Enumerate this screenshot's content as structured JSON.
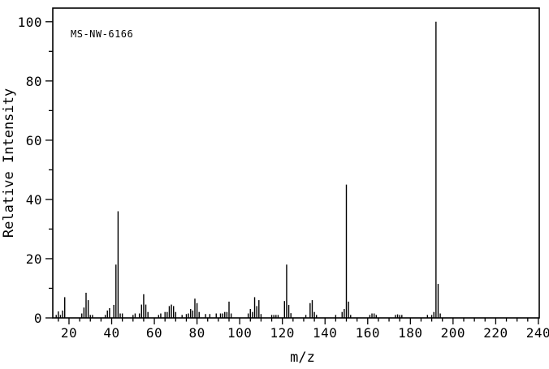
{
  "figure": {
    "annotation": "MS-NW-6166",
    "background_color": "#ffffff",
    "line_color": "#000000"
  },
  "chart_data": {
    "type": "bar",
    "subtype": "mass-spectrum",
    "title": "MS-NW-6166",
    "xlabel": "m/z",
    "ylabel": "Relative Intensity",
    "xlim": [
      12.4,
      240.4
    ],
    "ylim": [
      0,
      104.6
    ],
    "x_major_ticks": [
      20,
      40,
      60,
      80,
      100,
      120,
      140,
      160,
      180,
      200,
      220,
      240
    ],
    "x_minor_tick_step": 5,
    "y_major_ticks": [
      0,
      20,
      40,
      60,
      80,
      100
    ],
    "y_minor_tick_step": 10,
    "grid": false,
    "legend": null,
    "base_peak": {
      "mz": 192,
      "intensity": 100
    },
    "series": [
      {
        "name": "relative-intensity",
        "points": [
          [
            14,
            1
          ],
          [
            15,
            2.2
          ],
          [
            16,
            1
          ],
          [
            17,
            2.5
          ],
          [
            18,
            7
          ],
          [
            26,
            1.5
          ],
          [
            27,
            3.5
          ],
          [
            28,
            8.5
          ],
          [
            29,
            6
          ],
          [
            30,
            1
          ],
          [
            31,
            1
          ],
          [
            37,
            1
          ],
          [
            38,
            2.5
          ],
          [
            39,
            3.3
          ],
          [
            41,
            4.4
          ],
          [
            42,
            18
          ],
          [
            43,
            36
          ],
          [
            44,
            1.5
          ],
          [
            45,
            1.5
          ],
          [
            50,
            1
          ],
          [
            51,
            1.5
          ],
          [
            53,
            1.5
          ],
          [
            54,
            4.5
          ],
          [
            55,
            8
          ],
          [
            56,
            4.5
          ],
          [
            57,
            2
          ],
          [
            62,
            1
          ],
          [
            63,
            1.5
          ],
          [
            65,
            2
          ],
          [
            66,
            2
          ],
          [
            67,
            4
          ],
          [
            68,
            4.5
          ],
          [
            69,
            4
          ],
          [
            70,
            2
          ],
          [
            73,
            1
          ],
          [
            75,
            1.3
          ],
          [
            76,
            1.5
          ],
          [
            77,
            3
          ],
          [
            78,
            2.5
          ],
          [
            79,
            6.5
          ],
          [
            80,
            5
          ],
          [
            81,
            2
          ],
          [
            84,
            1.3
          ],
          [
            86,
            1.3
          ],
          [
            89,
            1.5
          ],
          [
            91,
            1.5
          ],
          [
            92,
            1.5
          ],
          [
            93,
            2
          ],
          [
            94,
            2
          ],
          [
            95,
            5.5
          ],
          [
            96,
            1.5
          ],
          [
            104,
            1.5
          ],
          [
            105,
            3
          ],
          [
            106,
            2
          ],
          [
            107,
            7
          ],
          [
            108,
            4
          ],
          [
            109,
            6
          ],
          [
            110,
            1.3
          ],
          [
            115,
            1
          ],
          [
            116,
            1
          ],
          [
            117,
            1
          ],
          [
            118,
            1
          ],
          [
            121,
            5.7
          ],
          [
            122,
            18
          ],
          [
            123,
            4.4
          ],
          [
            124,
            1.6
          ],
          [
            131,
            1
          ],
          [
            133,
            5
          ],
          [
            134,
            6
          ],
          [
            135,
            2
          ],
          [
            136,
            1
          ],
          [
            145,
            1
          ],
          [
            148,
            2
          ],
          [
            149,
            3
          ],
          [
            150,
            45
          ],
          [
            151,
            5.5
          ],
          [
            152,
            1
          ],
          [
            161,
            1
          ],
          [
            162,
            1.5
          ],
          [
            163,
            1.5
          ],
          [
            164,
            1
          ],
          [
            173,
            1
          ],
          [
            174,
            1.2
          ],
          [
            175,
            1
          ],
          [
            176,
            1
          ],
          [
            188,
            1
          ],
          [
            190,
            1
          ],
          [
            191,
            2
          ],
          [
            192,
            100
          ],
          [
            193,
            11.5
          ],
          [
            194,
            1.5
          ]
        ]
      }
    ]
  }
}
